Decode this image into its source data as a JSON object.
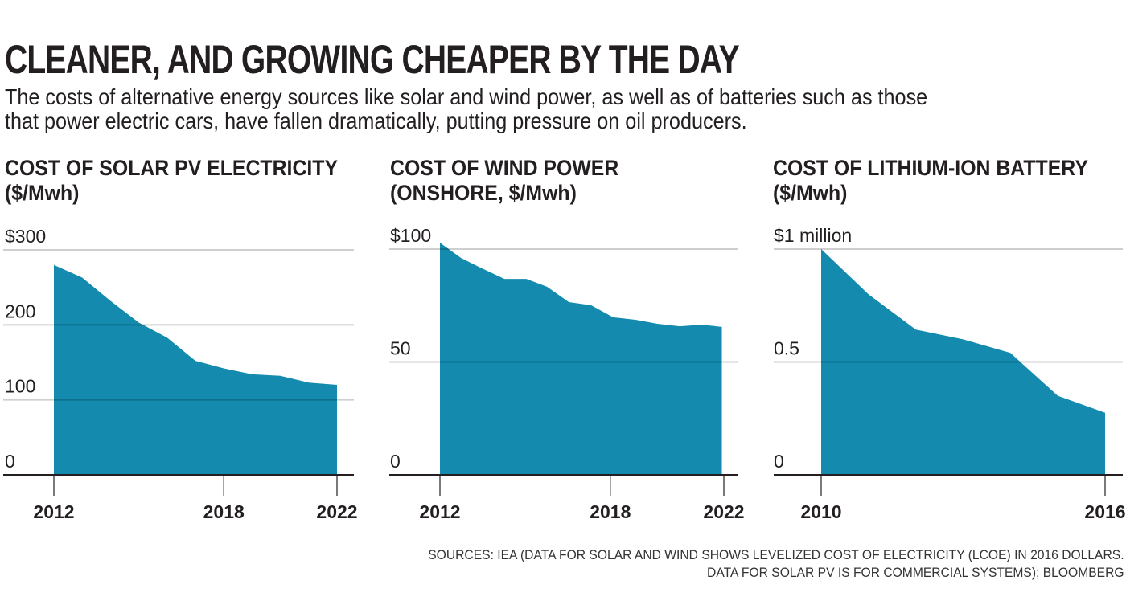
{
  "header": {
    "title": "CLEANER, AND GROWING CHEAPER BY THE DAY",
    "subtitle_line1": "The costs of alternative energy sources like solar and wind power, as well as of batteries such as those",
    "subtitle_line2": "that power electric cars, have fallen dramatically, putting pressure on oil producers."
  },
  "footer": {
    "source_line1": "SOURCES: IEA (DATA FOR SOLAR AND WIND SHOWS LEVELIZED COST OF ELECTRICITY (LCOE) IN 2016 DOLLARS.",
    "source_line2": "DATA FOR SOLAR PV IS FOR COMMERCIAL SYSTEMS); BLOOMBERG"
  },
  "colors": {
    "area_fill": "#138aae",
    "gridline": "#cfcfcf",
    "axis": "#231f20",
    "text": "#231f20"
  },
  "chart_data": [
    {
      "type": "area",
      "title_line1": "COST OF SOLAR PV ELECTRICITY",
      "title_line2": "($/Mwh)",
      "xlabel": "",
      "ylabel": "$/Mwh",
      "ylim": [
        0,
        300
      ],
      "xlim": [
        2012,
        2022
      ],
      "grid": true,
      "y_ticks": [
        {
          "value": 300,
          "label": "$300"
        },
        {
          "value": 200,
          "label": "200"
        },
        {
          "value": 100,
          "label": "100"
        },
        {
          "value": 0,
          "label": "0"
        }
      ],
      "x_ticks": [
        {
          "value": 2012,
          "label": "2012"
        },
        {
          "value": 2018,
          "label": "2018"
        },
        {
          "value": 2022,
          "label": "2022"
        }
      ],
      "x": [
        2012,
        2013,
        2014,
        2015,
        2016,
        2017,
        2018,
        2019,
        2020,
        2021,
        2022
      ],
      "values": [
        280,
        263,
        232,
        203,
        183,
        152,
        142,
        134,
        132,
        123,
        120
      ]
    },
    {
      "type": "area",
      "title_line1": "COST OF WIND POWER",
      "title_line2": "(ONSHORE, $/Mwh)",
      "xlabel": "",
      "ylabel": "$/Mwh",
      "ylim": [
        0,
        100
      ],
      "xlim": [
        2012,
        2022
      ],
      "grid": true,
      "y_ticks": [
        {
          "value": 100,
          "label": "$100"
        },
        {
          "value": 50,
          "label": "50"
        },
        {
          "value": 0,
          "label": "0"
        }
      ],
      "x_ticks": [
        {
          "value": 2012,
          "label": "2012"
        },
        {
          "value": 2018,
          "label": "2018"
        },
        {
          "value": 2022,
          "label": "2022"
        }
      ],
      "x": [
        2012.0,
        2012.74,
        2013.42,
        2014.27,
        2015.04,
        2015.77,
        2016.54,
        2017.33,
        2018.1,
        2018.89,
        2019.66,
        2020.45,
        2021.22,
        2021.93
      ],
      "values": [
        102.8,
        96.1,
        91.8,
        86.8,
        86.8,
        83.3,
        76.5,
        75.1,
        69.8,
        68.7,
        66.9,
        65.8,
        66.5,
        65.5
      ]
    },
    {
      "type": "area",
      "title_line1": "COST OF LITHIUM-ION BATTERY",
      "title_line2": "($/Mwh)",
      "xlabel": "",
      "ylabel": "$ million/Mwh",
      "ylim": [
        0,
        1
      ],
      "xlim": [
        2010,
        2016
      ],
      "grid": true,
      "y_ticks": [
        {
          "value": 1,
          "label": "$1 million"
        },
        {
          "value": 0.5,
          "label": "0.5"
        },
        {
          "value": 0,
          "label": "0"
        }
      ],
      "x_ticks": [
        {
          "value": 2010,
          "label": "2010"
        },
        {
          "value": 2016,
          "label": "2016"
        }
      ],
      "x": [
        2010,
        2011,
        2012,
        2013,
        2014,
        2015,
        2016
      ],
      "values": [
        1.0,
        0.8,
        0.643,
        0.6,
        0.54,
        0.35,
        0.275
      ]
    }
  ]
}
